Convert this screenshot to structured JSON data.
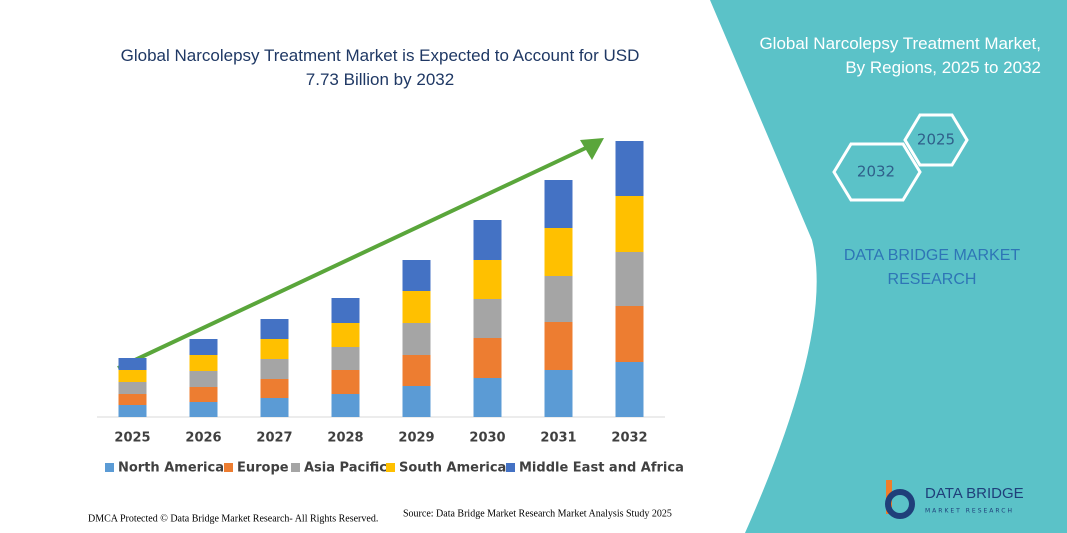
{
  "chart_data": {
    "type": "bar",
    "stacked": true,
    "title": "Global Narcolepsy Treatment Market is Expected to Account for USD 7.73 Billion by 2032",
    "categories": [
      "2025",
      "2026",
      "2027",
      "2028",
      "2029",
      "2030",
      "2031",
      "2032"
    ],
    "series": [
      {
        "name": "North America",
        "color": "#5b9bd5",
        "values": [
          12,
          15,
          19,
          23,
          31,
          39,
          47,
          55
        ]
      },
      {
        "name": "Europe",
        "color": "#ed7d31",
        "values": [
          11,
          15,
          19,
          24,
          31,
          40,
          48,
          56
        ]
      },
      {
        "name": "Asia Pacific",
        "color": "#a5a5a5",
        "values": [
          12,
          16,
          20,
          23,
          32,
          39,
          46,
          54
        ]
      },
      {
        "name": "South America",
        "color": "#ffc000",
        "values": [
          12,
          16,
          20,
          24,
          32,
          39,
          48,
          56
        ]
      },
      {
        "name": "Middle East and Africa",
        "color": "#4472c4",
        "values": [
          12,
          16,
          20,
          25,
          31,
          40,
          48,
          55
        ]
      }
    ],
    "ylim": [
      0,
      300
    ]
  },
  "panel": {
    "title": "Global Narcolepsy Treatment Market, By Regions, 2025 to 2032",
    "hexagons": [
      "2025",
      "2032"
    ],
    "brand": "DATA BRIDGE MARKET RESEARCH"
  },
  "footer": {
    "copyright": "DMCA Protected © Data Bridge Market Research- All Rights Reserved.",
    "source": "Source: Data Bridge Market Research Market Analysis Study 2025"
  },
  "logo": {
    "name": "DATA BRIDGE",
    "tagline": "MARKET RESEARCH"
  }
}
